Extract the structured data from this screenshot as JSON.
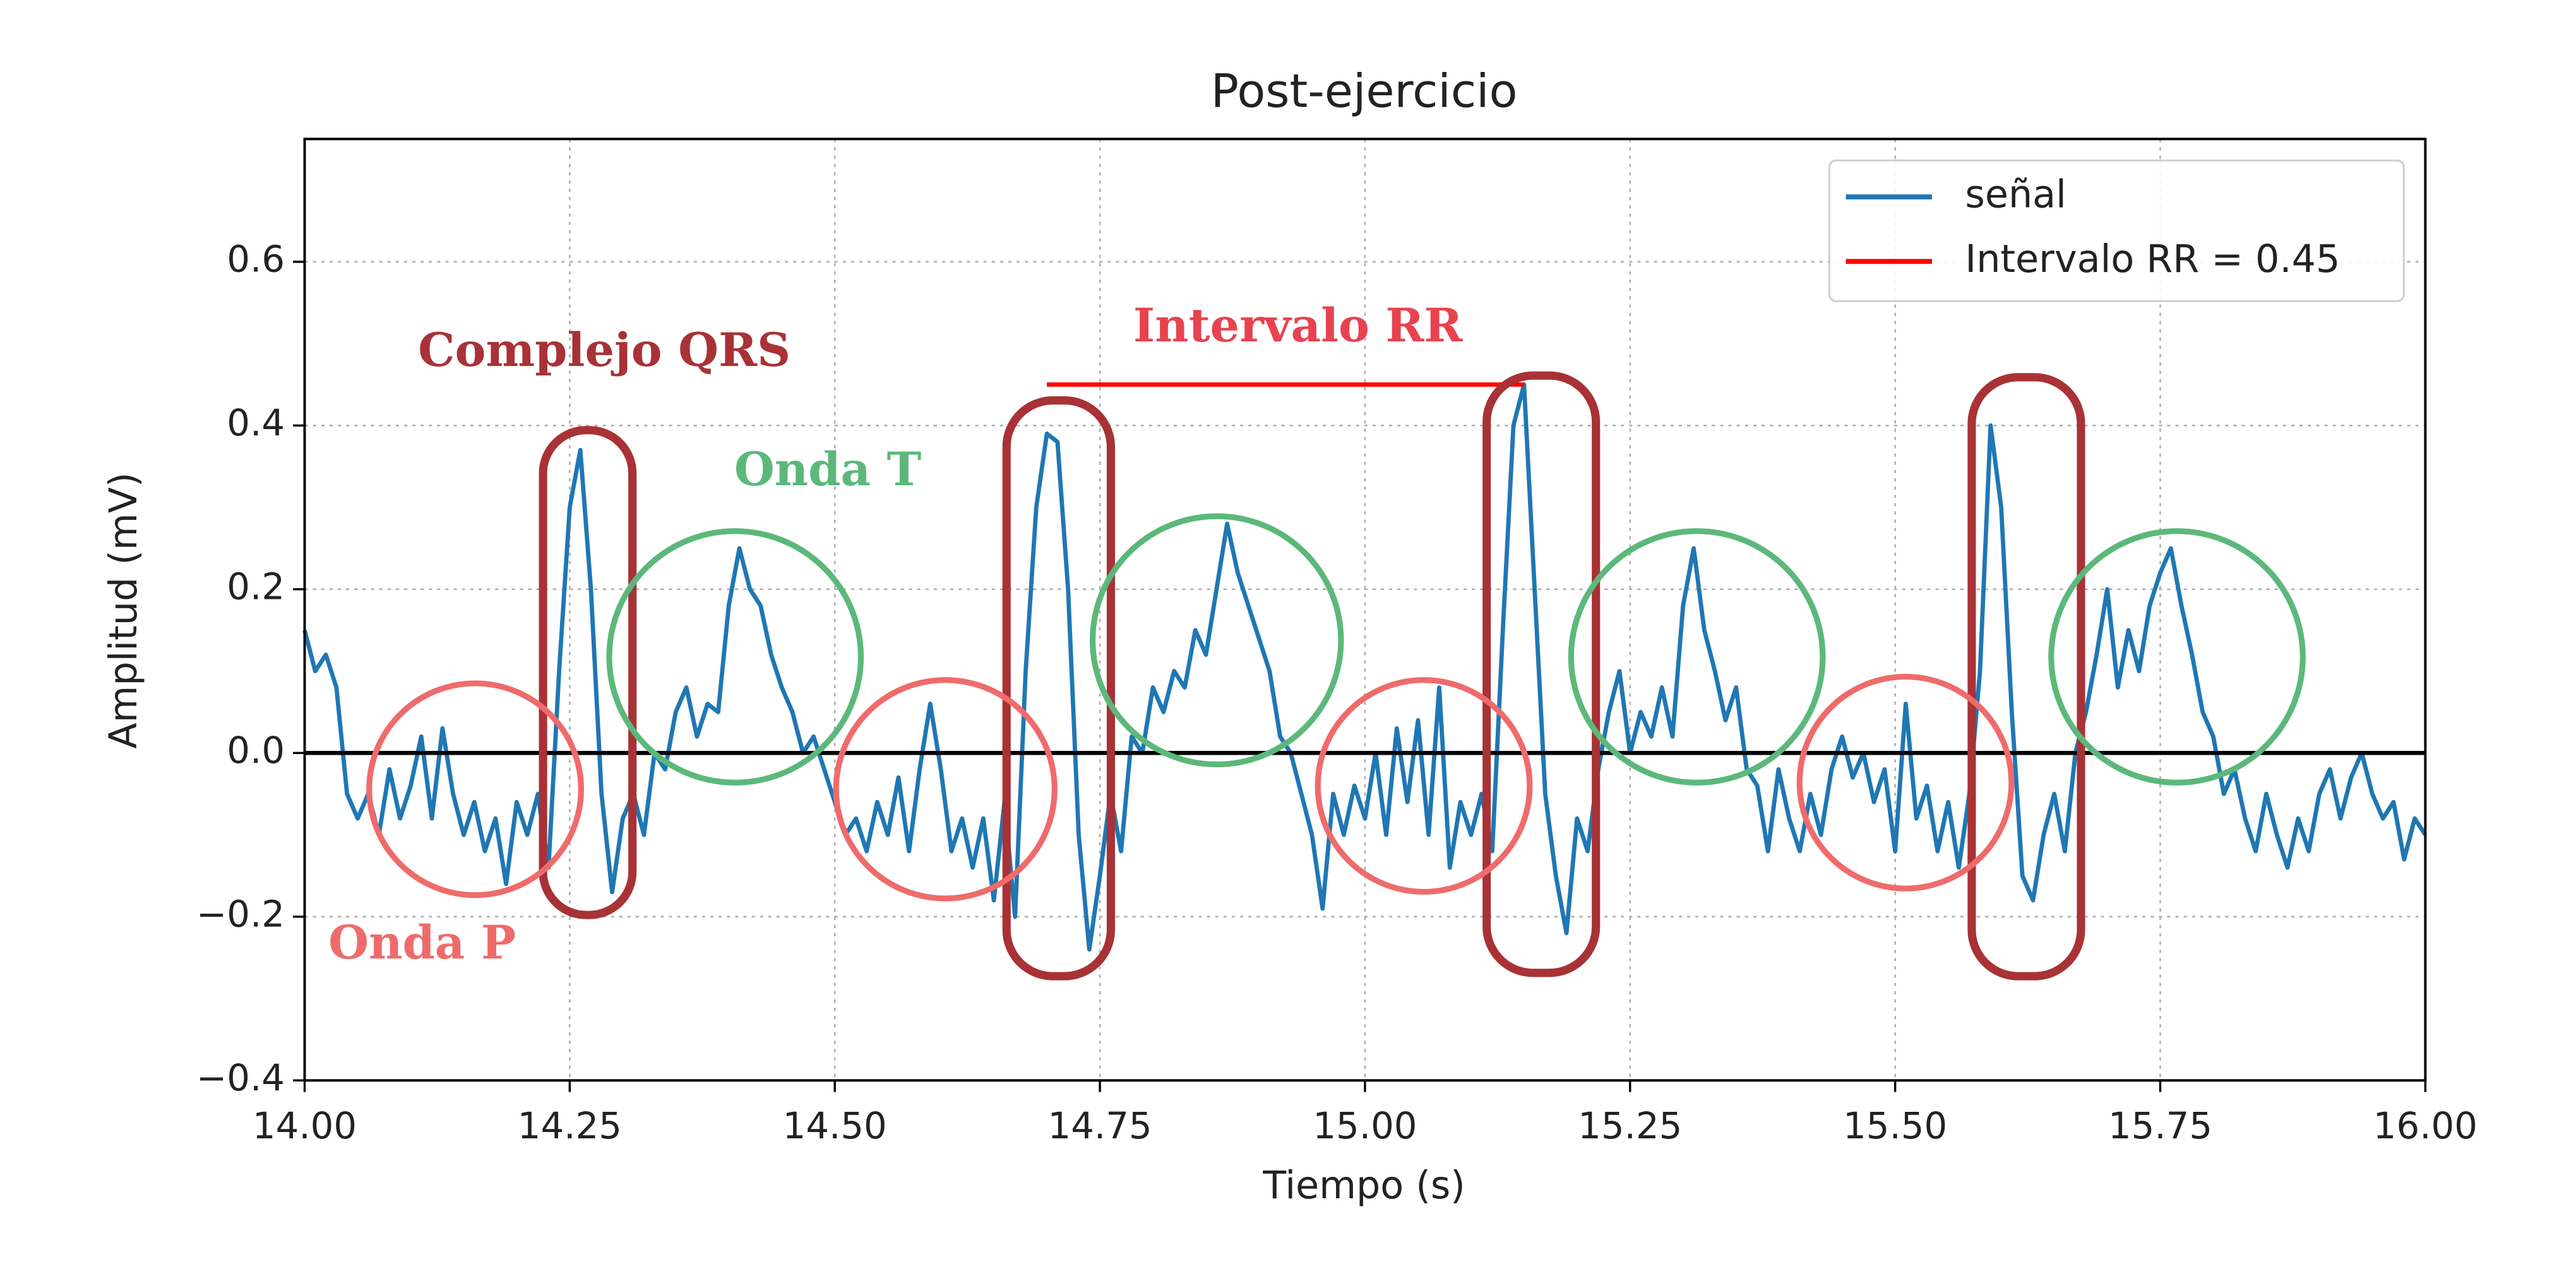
{
  "chart_data": {
    "type": "line",
    "title": "Post-ejercicio",
    "x_label": "Tiempo (s)",
    "y_label": "Amplitud (mV)",
    "xlim": [
      14.0,
      16.0
    ],
    "ylim": [
      -0.4,
      0.75
    ],
    "xticks": [
      {
        "value": 14.0,
        "label": "14.00"
      },
      {
        "value": 14.25,
        "label": "14.25"
      },
      {
        "value": 14.5,
        "label": "14.50"
      },
      {
        "value": 14.75,
        "label": "14.75"
      },
      {
        "value": 15.0,
        "label": "15.00"
      },
      {
        "value": 15.25,
        "label": "15.25"
      },
      {
        "value": 15.5,
        "label": "15.50"
      },
      {
        "value": 15.75,
        "label": "15.75"
      },
      {
        "value": 16.0,
        "label": "16.00"
      }
    ],
    "yticks": [
      {
        "value": -0.4,
        "label": "−0.4"
      },
      {
        "value": -0.2,
        "label": "−0.2"
      },
      {
        "value": 0.0,
        "label": "0.0"
      },
      {
        "value": 0.2,
        "label": "0.2"
      },
      {
        "value": 0.4,
        "label": "0.4"
      },
      {
        "value": 0.6,
        "label": "0.6"
      }
    ],
    "grid": true,
    "hline": 0,
    "legend": "upper right",
    "series": [
      {
        "name": "señal",
        "color": "#1f77b4",
        "x": [
          14.0,
          14.01,
          14.02,
          14.03,
          14.04,
          14.05,
          14.06,
          14.07,
          14.08,
          14.09,
          14.1,
          14.11,
          14.12,
          14.13,
          14.14,
          14.15,
          14.16,
          14.17,
          14.18,
          14.19,
          14.2,
          14.21,
          14.22,
          14.23,
          14.24,
          14.25,
          14.26,
          14.27,
          14.28,
          14.29,
          14.3,
          14.31,
          14.32,
          14.33,
          14.34,
          14.35,
          14.36,
          14.37,
          14.38,
          14.39,
          14.4,
          14.41,
          14.42,
          14.43,
          14.44,
          14.45,
          14.46,
          14.47,
          14.48,
          14.49,
          14.5,
          14.51,
          14.52,
          14.53,
          14.54,
          14.55,
          14.56,
          14.57,
          14.58,
          14.59,
          14.6,
          14.61,
          14.62,
          14.63,
          14.64,
          14.65,
          14.66,
          14.67,
          14.68,
          14.69,
          14.7,
          14.71,
          14.72,
          14.73,
          14.74,
          14.75,
          14.76,
          14.77,
          14.78,
          14.79,
          14.8,
          14.81,
          14.82,
          14.83,
          14.84,
          14.85,
          14.86,
          14.87,
          14.88,
          14.89,
          14.9,
          14.91,
          14.92,
          14.93,
          14.94,
          14.95,
          14.96,
          14.97,
          14.98,
          14.99,
          15.0,
          15.01,
          15.02,
          15.03,
          15.04,
          15.05,
          15.06,
          15.07,
          15.08,
          15.09,
          15.1,
          15.11,
          15.12,
          15.13,
          15.14,
          15.15,
          15.16,
          15.17,
          15.18,
          15.19,
          15.2,
          15.21,
          15.22,
          15.23,
          15.24,
          15.25,
          15.26,
          15.27,
          15.28,
          15.29,
          15.3,
          15.31,
          15.32,
          15.33,
          15.34,
          15.35,
          15.36,
          15.37,
          15.38,
          15.39,
          15.4,
          15.41,
          15.42,
          15.43,
          15.44,
          15.45,
          15.46,
          15.47,
          15.48,
          15.49,
          15.5,
          15.51,
          15.52,
          15.53,
          15.54,
          15.55,
          15.56,
          15.57,
          15.58,
          15.59,
          15.6,
          15.61,
          15.62,
          15.63,
          15.64,
          15.65,
          15.66,
          15.67,
          15.68,
          15.69,
          15.7,
          15.71,
          15.72,
          15.73,
          15.74,
          15.75,
          15.76,
          15.77,
          15.78,
          15.79,
          15.8,
          15.81,
          15.82,
          15.83,
          15.84,
          15.85,
          15.86,
          15.87,
          15.88,
          15.89,
          15.9,
          15.91,
          15.92,
          15.93,
          15.94,
          15.95,
          15.96,
          15.97,
          15.98,
          15.99,
          16.0
        ],
        "values": [
          0.15,
          0.1,
          0.12,
          0.08,
          -0.05,
          -0.08,
          -0.05,
          -0.1,
          -0.02,
          -0.08,
          -0.04,
          0.02,
          -0.08,
          0.03,
          -0.05,
          -0.1,
          -0.06,
          -0.12,
          -0.08,
          -0.16,
          -0.06,
          -0.1,
          -0.05,
          -0.14,
          0.1,
          0.3,
          0.37,
          0.2,
          -0.05,
          -0.17,
          -0.08,
          -0.05,
          -0.1,
          0.0,
          -0.02,
          0.05,
          0.08,
          0.02,
          0.06,
          0.05,
          0.18,
          0.25,
          0.2,
          0.18,
          0.12,
          0.08,
          0.05,
          0.0,
          0.02,
          -0.02,
          -0.06,
          -0.1,
          -0.08,
          -0.12,
          -0.06,
          -0.1,
          -0.03,
          -0.12,
          -0.02,
          0.06,
          -0.02,
          -0.12,
          -0.08,
          -0.14,
          -0.08,
          -0.18,
          -0.06,
          -0.2,
          0.1,
          0.3,
          0.39,
          0.38,
          0.2,
          -0.1,
          -0.24,
          -0.15,
          -0.05,
          -0.12,
          0.02,
          0.0,
          0.08,
          0.05,
          0.1,
          0.08,
          0.15,
          0.12,
          0.2,
          0.28,
          0.22,
          0.18,
          0.14,
          0.1,
          0.02,
          0.0,
          -0.05,
          -0.1,
          -0.19,
          -0.05,
          -0.1,
          -0.04,
          -0.08,
          0.0,
          -0.1,
          0.03,
          -0.06,
          0.04,
          -0.1,
          0.08,
          -0.14,
          -0.06,
          -0.1,
          -0.05,
          -0.12,
          0.15,
          0.4,
          0.45,
          0.2,
          -0.05,
          -0.15,
          -0.22,
          -0.08,
          -0.12,
          -0.02,
          0.05,
          0.1,
          0.0,
          0.05,
          0.02,
          0.08,
          0.02,
          0.18,
          0.25,
          0.15,
          0.1,
          0.04,
          0.08,
          -0.02,
          -0.04,
          -0.12,
          -0.02,
          -0.08,
          -0.12,
          -0.05,
          -0.1,
          -0.02,
          0.02,
          -0.03,
          0.0,
          -0.06,
          -0.02,
          -0.12,
          0.06,
          -0.08,
          -0.04,
          -0.12,
          -0.06,
          -0.14,
          -0.05,
          0.1,
          0.4,
          0.3,
          0.05,
          -0.15,
          -0.18,
          -0.1,
          -0.05,
          -0.12,
          0.0,
          0.05,
          0.12,
          0.2,
          0.08,
          0.15,
          0.1,
          0.18,
          0.22,
          0.25,
          0.18,
          0.12,
          0.05,
          0.02,
          -0.05,
          -0.02,
          -0.08,
          -0.12,
          -0.05,
          -0.1,
          -0.14,
          -0.08,
          -0.12,
          -0.05,
          -0.02,
          -0.08,
          -0.03,
          0.0,
          -0.05,
          -0.08,
          -0.06,
          -0.13,
          -0.08,
          -0.1
        ]
      },
      {
        "name": "Intervalo RR = 0.45",
        "color": "#ff0000",
        "x": [
          14.7,
          15.15
        ],
        "values": [
          0.45,
          0.45
        ]
      }
    ],
    "annotations": [
      "Complejo QRS",
      "Onda T",
      "Intervalo RR",
      "Onda P"
    ]
  }
}
